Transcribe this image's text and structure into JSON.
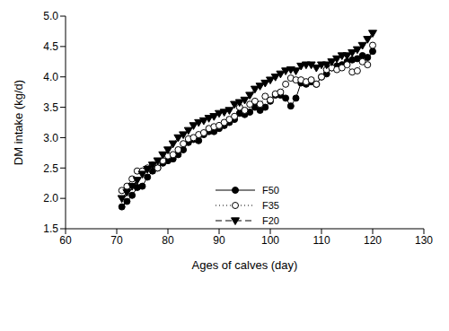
{
  "chart_data": {
    "type": "line",
    "x_label": "Ages of calves (day)",
    "y_label": "DM intake (kg/d)",
    "xlim": [
      60,
      130
    ],
    "xticks": [
      60,
      70,
      80,
      90,
      100,
      110,
      120,
      130
    ],
    "ylim": [
      1.5,
      5.0
    ],
    "yticks": [
      1.5,
      {
        "value": 2,
        "label": "2.0"
      },
      2.5,
      {
        "value": 3,
        "label": "3.0"
      },
      3.5,
      {
        "value": 4,
        "label": "4.0"
      },
      4.5,
      {
        "value": 5,
        "label": "5.0"
      }
    ],
    "legend": "right",
    "grid": false,
    "x": [
      71,
      72,
      73,
      74,
      75,
      76,
      77,
      78,
      79,
      80,
      81,
      82,
      83,
      84,
      85,
      86,
      87,
      88,
      89,
      90,
      91,
      92,
      93,
      94,
      95,
      96,
      97,
      98,
      99,
      100,
      101,
      102,
      103,
      104,
      105,
      106,
      107,
      108,
      109,
      110,
      111,
      112,
      113,
      114,
      115,
      116,
      117,
      118,
      119,
      120
    ],
    "series": [
      {
        "name": "F50",
        "color": "#000000",
        "marker": "circle",
        "line_style": "solid",
        "values": [
          1.86,
          1.95,
          2.05,
          2.18,
          2.2,
          2.35,
          2.45,
          2.5,
          2.58,
          2.62,
          2.65,
          2.72,
          2.8,
          2.92,
          2.97,
          2.95,
          3.05,
          3.1,
          3.1,
          3.15,
          3.2,
          3.25,
          3.3,
          3.4,
          3.38,
          3.42,
          3.5,
          3.45,
          3.5,
          3.6,
          3.7,
          3.7,
          3.65,
          3.52,
          3.65,
          3.9,
          3.88,
          3.92,
          3.88,
          4.0,
          4.05,
          4.15,
          4.18,
          4.2,
          4.25,
          4.28,
          4.3,
          4.35,
          4.32,
          4.42
        ]
      },
      {
        "name": "F35",
        "color": "#000000",
        "marker": "open_circle",
        "line_style": "dotted",
        "values": [
          2.13,
          2.2,
          2.32,
          2.45,
          2.45,
          2.5,
          2.55,
          2.5,
          2.62,
          2.7,
          2.72,
          2.8,
          2.9,
          2.98,
          3.0,
          3.05,
          3.08,
          3.15,
          3.18,
          3.2,
          3.25,
          3.3,
          3.35,
          3.5,
          3.45,
          3.55,
          3.6,
          3.55,
          3.68,
          3.62,
          3.72,
          3.75,
          3.88,
          3.98,
          3.95,
          3.95,
          3.92,
          3.95,
          3.88,
          4.0,
          4.12,
          4.15,
          4.12,
          4.15,
          4.2,
          4.08,
          4.1,
          4.25,
          4.2,
          4.52
        ]
      },
      {
        "name": "F20",
        "color": "#000000",
        "marker": "triangle_down",
        "line_style": "dashed",
        "values": [
          2.0,
          2.1,
          2.2,
          2.3,
          2.4,
          2.48,
          2.55,
          2.62,
          2.72,
          2.8,
          2.9,
          3.0,
          3.05,
          3.12,
          3.2,
          3.25,
          3.28,
          3.32,
          3.35,
          3.4,
          3.42,
          3.45,
          3.55,
          3.58,
          3.62,
          3.7,
          3.8,
          3.85,
          3.9,
          3.95,
          4.0,
          4.05,
          4.1,
          4.12,
          4.1,
          4.18,
          4.2,
          4.2,
          4.15,
          4.2,
          4.2,
          4.25,
          4.3,
          4.35,
          4.35,
          4.4,
          4.45,
          4.52,
          4.62,
          4.72
        ]
      }
    ]
  }
}
